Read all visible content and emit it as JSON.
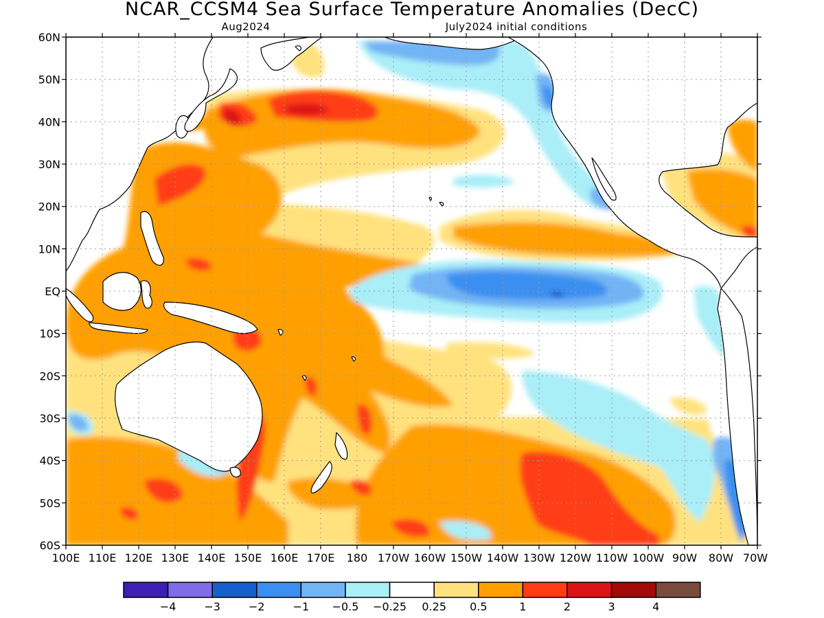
{
  "title": "NCAR_CCSM4 Sea Surface Temperature Anomalies (DecC)",
  "subtitle_left": "Aug2024",
  "subtitle_right": "July2024 initial conditions",
  "lat_labels": [
    "60N",
    "50N",
    "40N",
    "30N",
    "20N",
    "10N",
    "EQ",
    "10S",
    "20S",
    "30S",
    "40S",
    "50S",
    "60S"
  ],
  "lon_labels": [
    "100E",
    "110E",
    "120E",
    "130E",
    "140E",
    "150E",
    "160E",
    "170E",
    "180",
    "170W",
    "160W",
    "150W",
    "140W",
    "130W",
    "120W",
    "110W",
    "100W",
    "90W",
    "80W",
    "70W"
  ],
  "colorbar": {
    "colors": [
      "#3d1fb5",
      "#7e6ce8",
      "#1660cc",
      "#3b8ff0",
      "#73b4f5",
      "#aaeef8",
      "#ffffff",
      "#ffe27e",
      "#ffa000",
      "#ff3c14",
      "#dc1414",
      "#a30a0a",
      "#7a4b3c"
    ],
    "labels": [
      "-4",
      "-3",
      "-2",
      "-1",
      "-0.5",
      "-0.25",
      "0.25",
      "0.5",
      "1",
      "2",
      "3",
      "4"
    ]
  },
  "colors": {
    "land_outline": "#000000",
    "grid": "#9a9a9a"
  }
}
